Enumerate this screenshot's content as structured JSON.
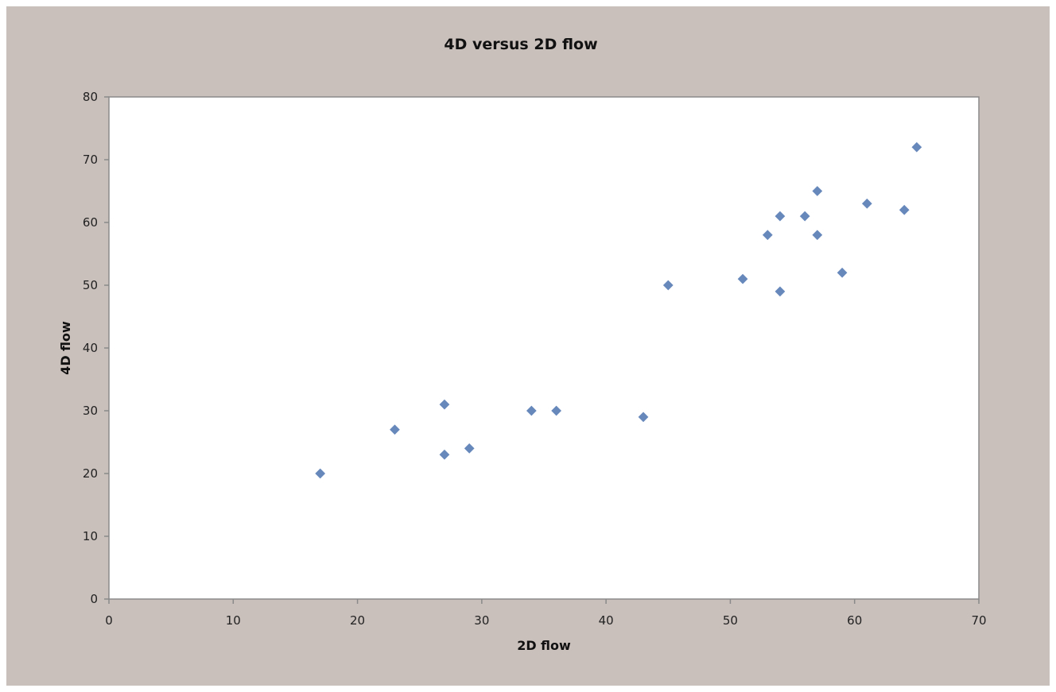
{
  "chart_data": {
    "type": "scatter",
    "title": "4D versus 2D flow",
    "xlabel": "2D flow",
    "ylabel": "4D flow",
    "xlim": [
      0,
      70
    ],
    "ylim": [
      0,
      80
    ],
    "x_ticks": [
      0,
      10,
      20,
      30,
      40,
      50,
      60,
      70
    ],
    "y_ticks": [
      0,
      10,
      20,
      30,
      40,
      50,
      60,
      70,
      80
    ],
    "grid": false,
    "legend": "none",
    "marker_color": "#6688bb",
    "plot_background": "#ffffff",
    "chart_background": "#c9bfbb",
    "series": [
      {
        "points": [
          [
            17,
            20
          ],
          [
            23,
            27
          ],
          [
            27,
            31
          ],
          [
            27,
            23
          ],
          [
            29,
            24
          ],
          [
            34,
            30
          ],
          [
            36,
            30
          ],
          [
            43,
            29
          ],
          [
            45,
            50
          ],
          [
            51,
            51
          ],
          [
            53,
            58
          ],
          [
            54,
            61
          ],
          [
            54,
            49
          ],
          [
            56,
            61
          ],
          [
            57,
            65
          ],
          [
            57,
            58
          ],
          [
            59,
            52
          ],
          [
            61,
            63
          ],
          [
            64,
            62
          ],
          [
            65,
            72
          ]
        ]
      }
    ]
  }
}
